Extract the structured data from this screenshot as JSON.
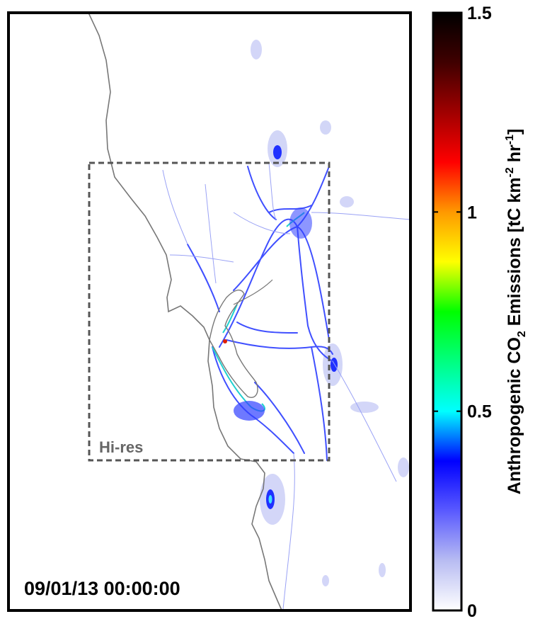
{
  "map": {
    "box_label": "Hi-res",
    "timestamp": "09/01/13 00:00:00"
  },
  "colorbar": {
    "lim": [
      0,
      1.5
    ],
    "ticks": [
      0,
      0.5,
      1,
      1.5
    ],
    "label_parts": [
      "Anthropogenic CO",
      "2",
      " Emissions [tC km",
      "-2",
      " hr",
      "-1",
      "]"
    ],
    "colormap": [
      "#ffffff",
      "#b8bcf2",
      "#5a5aff",
      "#0000ff",
      "#00ffff",
      "#00ff80",
      "#00ff00",
      "#ffff00",
      "#ff9900",
      "#ff0000",
      "#a00000",
      "#400000",
      "#000000"
    ]
  }
}
